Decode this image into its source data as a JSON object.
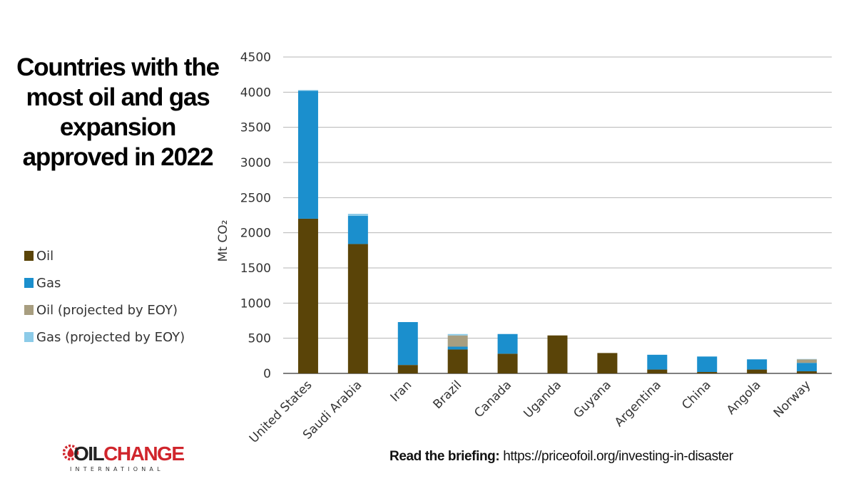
{
  "title": "Countries with the most oil and gas expansion approved in 2022",
  "legend": [
    {
      "label": "Oil",
      "color": "#5a4408"
    },
    {
      "label": "Gas",
      "color": "#1b8fcd"
    },
    {
      "label": "Oil (projected by EOY)",
      "color": "#a89e80"
    },
    {
      "label": "Gas (projected by EOY)",
      "color": "#8ccbe8"
    }
  ],
  "chart_data": {
    "type": "bar",
    "stacked": true,
    "categories": [
      "United States",
      "Saudi Arabia",
      "Iran",
      "Brazil",
      "Canada",
      "Uganda",
      "Guyana",
      "Argentina",
      "China",
      "Angola",
      "Norway"
    ],
    "series": [
      {
        "name": "Oil",
        "color": "#5a4408",
        "values": [
          2200,
          1840,
          120,
          340,
          280,
          540,
          290,
          55,
          20,
          55,
          30
        ]
      },
      {
        "name": "Gas",
        "color": "#1b8fcd",
        "values": [
          1820,
          400,
          610,
          40,
          280,
          0,
          0,
          210,
          220,
          145,
          120
        ]
      },
      {
        "name": "Oil (projected by EOY)",
        "color": "#a89e80",
        "values": [
          0,
          0,
          0,
          160,
          0,
          0,
          0,
          0,
          0,
          0,
          50
        ]
      },
      {
        "name": "Gas (projected by EOY)",
        "color": "#8ccbe8",
        "values": [
          10,
          30,
          0,
          20,
          0,
          0,
          0,
          0,
          0,
          0,
          5
        ]
      }
    ],
    "ylabel": "Mt CO₂",
    "yticks": [
      0,
      500,
      1000,
      1500,
      2000,
      2500,
      3000,
      3500,
      4000,
      4500
    ],
    "ylim": [
      0,
      4500
    ],
    "grid": true,
    "legend_position": "left"
  },
  "logo": {
    "word_1": "OIL",
    "word_2": "CHANGE",
    "sub": "INTERNATIONAL"
  },
  "footer": {
    "bold": "Read the briefing:",
    "link": "https://priceofoil.org/investing-in-disaster"
  }
}
